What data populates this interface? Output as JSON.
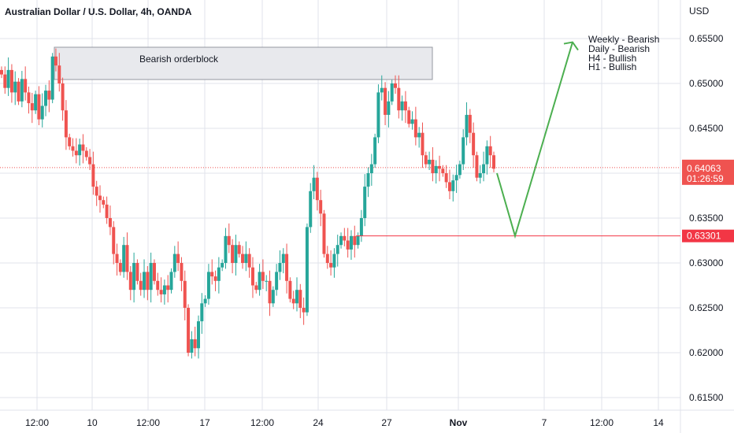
{
  "chart_data": {
    "type": "candlestick",
    "title": "Australian Dollar / U.S. Dollar, 4h, OANDA",
    "currency": "USD",
    "y_ticks": [
      "0.65500",
      "0.65000",
      "0.64500",
      "0.64000",
      "0.63500",
      "0.63000",
      "0.62500",
      "0.62000",
      "0.61500"
    ],
    "ylim": [
      0.6137,
      0.6571
    ],
    "x_ticks": [
      {
        "label": "12:00",
        "bold": false
      },
      {
        "label": "10",
        "bold": false
      },
      {
        "label": "12:00",
        "bold": false
      },
      {
        "label": "17",
        "bold": false
      },
      {
        "label": "12:00",
        "bold": false
      },
      {
        "label": "24",
        "bold": false
      },
      {
        "label": "27",
        "bold": false
      },
      {
        "label": "Nov",
        "bold": true
      },
      {
        "label": "7",
        "bold": false
      },
      {
        "label": "12:00",
        "bold": false
      },
      {
        "label": "14",
        "bold": false
      }
    ],
    "closes": [
      0.651,
      0.6495,
      0.6515,
      0.649,
      0.6502,
      0.648,
      0.6505,
      0.649,
      0.6478,
      0.647,
      0.6488,
      0.646,
      0.6475,
      0.6492,
      0.6482,
      0.653,
      0.652,
      0.65,
      0.647,
      0.644,
      0.643,
      0.6425,
      0.642,
      0.6432,
      0.6425,
      0.6418,
      0.641,
      0.6385,
      0.6375,
      0.637,
      0.6365,
      0.635,
      0.634,
      0.631,
      0.63,
      0.629,
      0.632,
      0.629,
      0.627,
      0.63,
      0.628,
      0.627,
      0.629,
      0.627,
      0.63,
      0.628,
      0.627,
      0.6265,
      0.6275,
      0.627,
      0.629,
      0.631,
      0.63,
      0.628,
      0.625,
      0.62,
      0.6215,
      0.6205,
      0.6235,
      0.6255,
      0.626,
      0.629,
      0.6285,
      0.628,
      0.6295,
      0.63,
      0.633,
      0.632,
      0.63,
      0.632,
      0.631,
      0.63,
      0.631,
      0.6295,
      0.6275,
      0.627,
      0.629,
      0.628,
      0.628,
      0.6255,
      0.627,
      0.629,
      0.63,
      0.631,
      0.628,
      0.626,
      0.6255,
      0.627,
      0.625,
      0.6245,
      0.634,
      0.638,
      0.6395,
      0.637,
      0.6355,
      0.631,
      0.63,
      0.6295,
      0.631,
      0.632,
      0.633,
      0.6325,
      0.6315,
      0.633,
      0.632,
      0.633,
      0.635,
      0.6385,
      0.64,
      0.641,
      0.644,
      0.649,
      0.6495,
      0.6465,
      0.648,
      0.65,
      0.6495,
      0.647,
      0.648,
      0.647,
      0.6455,
      0.646,
      0.644,
      0.6445,
      0.642,
      0.641,
      0.6415,
      0.64,
      0.6408,
      0.6405,
      0.64,
      0.639,
      0.638,
      0.6392,
      0.6398,
      0.641,
      0.644,
      0.6465,
      0.6445,
      0.642,
      0.6395,
      0.64,
      0.641,
      0.643,
      0.642,
      0.6405
    ]
  },
  "annotations": {
    "orderblock_label": "Bearish orderblock",
    "bias_lines": [
      "Weekly - Bearish",
      "Daily - Bearish",
      "H4 - Bullish",
      "H1 - Bullish"
    ],
    "support_level": 0.63301,
    "support_label": "0.63301",
    "path_points": [
      [
        631,
        0.64
      ],
      [
        654,
        0.63301
      ],
      [
        727,
        0.6546
      ]
    ]
  },
  "last_price": {
    "value": "0.64063",
    "countdown": "01:26:59"
  },
  "colors": {
    "up": "#26a69a",
    "down": "#ef5350",
    "grid": "#e0e3eb",
    "text": "#131722",
    "support": "#f23645",
    "arrow": "#4caf50",
    "zone_fill": "#e8e9ed",
    "zone_border": "#9598a1"
  }
}
